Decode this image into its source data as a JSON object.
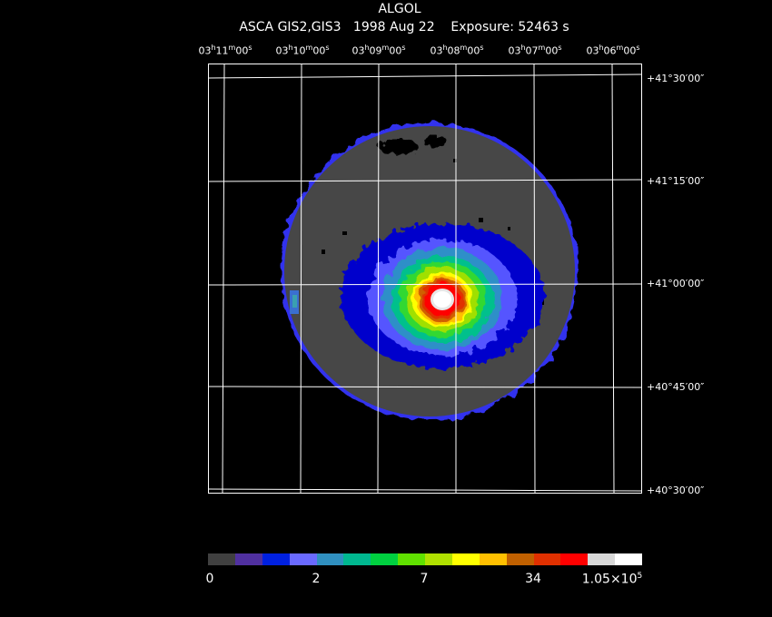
{
  "header": {
    "object": "ALGOL",
    "subtitle": "ASCA GIS2,GIS3   1998 Aug 22    Exposure: 52463 s"
  },
  "ra_labels": [
    {
      "h": "03",
      "m": "11",
      "s": "00"
    },
    {
      "h": "03",
      "m": "10",
      "s": "00"
    },
    {
      "h": "03",
      "m": "09",
      "s": "00"
    },
    {
      "h": "03",
      "m": "08",
      "s": "00"
    },
    {
      "h": "03",
      "m": "07",
      "s": "00"
    },
    {
      "h": "03",
      "m": "06",
      "s": "00"
    }
  ],
  "dec_labels": [
    "+41°30′00″",
    "+41°15′00″",
    "+41°00′00″",
    "+40°45′00″",
    "+40°30′00″"
  ],
  "colorbar": {
    "colors": [
      "#404040",
      "#5030a0",
      "#0020e0",
      "#6a6aff",
      "#3090c0",
      "#00b890",
      "#00d040",
      "#60e000",
      "#b0e000",
      "#ffff00",
      "#ffc000",
      "#c06000",
      "#e03000",
      "#ff0000",
      "#d8d8d8",
      "#ffffff"
    ],
    "tick_labels": [
      "0",
      "2",
      "7",
      "34",
      "1.05×10",
      "5"
    ]
  },
  "chart_data": {
    "type": "heatmap",
    "title": "ALGOL",
    "subtitle": "ASCA GIS2,GIS3   1998 Aug 22    Exposure: 52463 s",
    "colorbar_range": [
      0,
      105000
    ],
    "colorbar_ticks": [
      0,
      2,
      7,
      34,
      105000
    ],
    "source_center_dec": "+41°00′00″"
  }
}
